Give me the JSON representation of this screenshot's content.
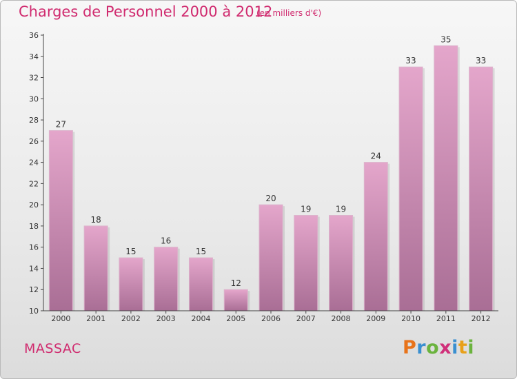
{
  "title": "Charges de Personnel 2000 à 2012",
  "subtitle": "(en milliers d'€)",
  "commune": "MASSAC",
  "logo": {
    "letters": [
      "P",
      "r",
      "o",
      "x",
      "i",
      "t",
      "i"
    ],
    "colors": [
      "#e8731a",
      "#3a8fd0",
      "#6bb33e",
      "#d0307a",
      "#3a8fd0",
      "#e8a01a",
      "#6bb33e"
    ]
  },
  "colors": {
    "bar_top": "#e4a6cb",
    "bar_bottom": "#a96e95",
    "accent": "#d02b6f"
  },
  "chart_data": {
    "type": "bar",
    "categories": [
      "2000",
      "2001",
      "2002",
      "2003",
      "2004",
      "2005",
      "2006",
      "2007",
      "2008",
      "2009",
      "2010",
      "2011",
      "2012"
    ],
    "values": [
      27,
      18,
      15,
      16,
      15,
      12,
      20,
      19,
      19,
      24,
      33,
      35,
      33
    ],
    "data_labels": [
      "27",
      "18",
      "15",
      "16",
      "15",
      "12",
      "20",
      "19",
      "19",
      "24",
      "33",
      "35",
      "33"
    ],
    "yticks": [
      10,
      12,
      14,
      16,
      18,
      20,
      22,
      24,
      26,
      28,
      30,
      32,
      34,
      36
    ],
    "ylim": [
      10,
      36
    ],
    "grid": false
  }
}
